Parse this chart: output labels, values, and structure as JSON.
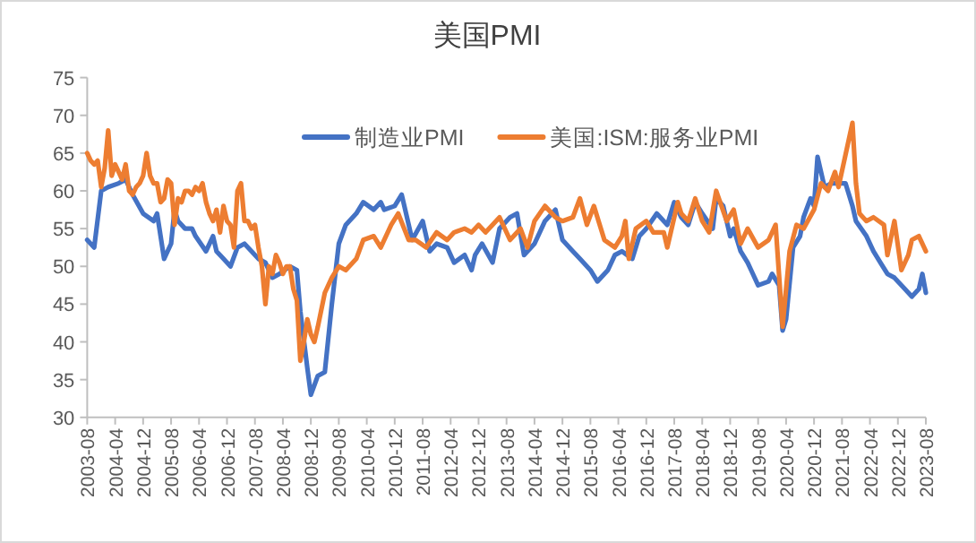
{
  "chart_data": {
    "type": "line",
    "title": "美国PMI",
    "legend": "top",
    "xlim": [
      "2003-08",
      "2023-08"
    ],
    "xticks": [
      "2003-08",
      "2004-04",
      "2004-12",
      "2005-08",
      "2006-04",
      "2006-12",
      "2007-08",
      "2008-04",
      "2008-12",
      "2009-08",
      "2010-04",
      "2010-12",
      "2011-08",
      "2012-04",
      "2012-12",
      "2013-08",
      "2014-04",
      "2014-12",
      "2015-08",
      "2016-04",
      "2016-12",
      "2017-08",
      "2018-04",
      "2018-12",
      "2019-08",
      "2020-04",
      "2020-12",
      "2021-08",
      "2022-04",
      "2022-12",
      "2023-08"
    ],
    "ylim": [
      30,
      75
    ],
    "yticks": [
      30,
      35,
      40,
      45,
      50,
      55,
      60,
      65,
      70,
      75
    ],
    "series": [
      {
        "name": "制造业PMI",
        "color": "#4472c4",
        "x": [
          "2003-08",
          "2003-10",
          "2003-12",
          "2004-02",
          "2004-05",
          "2004-07",
          "2004-09",
          "2004-12",
          "2005-03",
          "2005-04",
          "2005-05",
          "2005-06",
          "2005-08",
          "2005-09",
          "2005-10",
          "2005-12",
          "2006-02",
          "2006-03",
          "2006-06",
          "2006-08",
          "2006-09",
          "2006-11",
          "2007-01",
          "2007-03",
          "2007-05",
          "2007-09",
          "2007-11",
          "2008-01",
          "2008-03",
          "2008-06",
          "2008-08",
          "2008-09",
          "2008-11",
          "2008-12",
          "2009-02",
          "2009-04",
          "2009-06",
          "2009-08",
          "2009-10",
          "2009-11",
          "2010-01",
          "2010-03",
          "2010-06",
          "2010-08",
          "2010-09",
          "2010-12",
          "2011-02",
          "2011-04",
          "2011-05",
          "2011-08",
          "2011-10",
          "2011-12",
          "2012-03",
          "2012-05",
          "2012-08",
          "2012-10",
          "2012-11",
          "2013-01",
          "2013-04",
          "2013-06",
          "2013-09",
          "2013-11",
          "2014-01",
          "2014-04",
          "2014-07",
          "2014-10",
          "2014-12",
          "2015-03",
          "2015-05",
          "2015-08",
          "2015-10",
          "2016-01",
          "2016-03",
          "2016-05",
          "2016-08",
          "2016-10",
          "2016-12",
          "2017-03",
          "2017-06",
          "2017-08",
          "2017-10",
          "2017-12",
          "2018-02",
          "2018-04",
          "2018-07",
          "2018-08",
          "2018-10",
          "2018-12",
          "2019-01",
          "2019-03",
          "2019-05",
          "2019-06",
          "2019-08",
          "2019-11",
          "2019-12",
          "2020-02",
          "2020-03",
          "2020-04",
          "2020-06",
          "2020-08",
          "2020-09",
          "2020-11",
          "2020-12",
          "2021-01",
          "2021-03",
          "2021-05",
          "2021-07",
          "2021-09",
          "2021-11",
          "2021-12",
          "2022-03",
          "2022-05",
          "2022-07",
          "2022-09",
          "2022-11",
          "2023-02",
          "2023-04",
          "2023-06",
          "2023-07",
          "2023-08"
        ],
        "values": [
          53.5,
          52.5,
          60,
          60.5,
          61,
          61.5,
          59.5,
          57,
          56,
          57,
          54,
          51,
          53,
          57.5,
          56,
          55,
          55,
          54,
          52,
          54,
          52,
          51,
          50,
          52.5,
          53,
          51,
          50.5,
          48.5,
          49,
          50,
          49.5,
          44,
          36.5,
          33,
          35.5,
          36,
          45,
          53,
          55.5,
          56,
          57,
          58.5,
          57.5,
          58.5,
          57.5,
          58,
          59.5,
          55.5,
          53.5,
          56,
          52,
          53,
          52.5,
          50.5,
          51.5,
          49.5,
          51.5,
          53,
          50.5,
          55,
          56.5,
          57,
          51.5,
          53,
          56,
          57.5,
          53.5,
          52,
          51,
          49.5,
          48,
          49.5,
          51.5,
          52,
          51,
          54,
          55,
          57,
          55.5,
          58.5,
          56.5,
          55.5,
          58.5,
          57,
          55,
          59,
          58,
          54,
          55,
          52,
          50.5,
          49.5,
          47.5,
          48,
          49,
          47.5,
          41.5,
          43,
          52.5,
          54,
          56.5,
          59,
          58,
          64.5,
          60.5,
          61,
          61,
          61,
          58,
          56,
          54,
          52,
          50.5,
          49,
          48.5,
          47,
          46,
          47,
          49,
          46.5
        ]
      },
      {
        "name": "美国:ISM:服务业PMI",
        "color": "#ed7d31",
        "x": [
          "2003-08",
          "2003-09",
          "2003-10",
          "2003-11",
          "2003-12",
          "2004-01",
          "2004-02",
          "2004-03",
          "2004-04",
          "2004-05",
          "2004-06",
          "2004-07",
          "2004-08",
          "2004-09",
          "2004-10",
          "2004-11",
          "2004-12",
          "2005-01",
          "2005-02",
          "2005-03",
          "2005-04",
          "2005-05",
          "2005-06",
          "2005-07",
          "2005-08",
          "2005-09",
          "2005-10",
          "2005-11",
          "2005-12",
          "2006-01",
          "2006-02",
          "2006-03",
          "2006-04",
          "2006-05",
          "2006-06",
          "2006-07",
          "2006-08",
          "2006-09",
          "2006-10",
          "2006-11",
          "2006-12",
          "2007-01",
          "2007-02",
          "2007-03",
          "2007-04",
          "2007-05",
          "2007-06",
          "2007-07",
          "2007-08",
          "2007-09",
          "2007-10",
          "2007-11",
          "2007-12",
          "2008-01",
          "2008-02",
          "2008-03",
          "2008-04",
          "2008-05",
          "2008-06",
          "2008-07",
          "2008-08",
          "2008-09",
          "2008-10",
          "2008-11",
          "2008-12",
          "2009-01",
          "2009-02",
          "2009-04",
          "2009-06",
          "2009-08",
          "2009-10",
          "2010-01",
          "2010-03",
          "2010-06",
          "2010-08",
          "2010-11",
          "2011-01",
          "2011-04",
          "2011-06",
          "2011-09",
          "2011-12",
          "2012-03",
          "2012-05",
          "2012-08",
          "2012-10",
          "2012-12",
          "2013-02",
          "2013-06",
          "2013-09",
          "2013-12",
          "2014-02",
          "2014-04",
          "2014-07",
          "2014-10",
          "2014-12",
          "2015-03",
          "2015-05",
          "2015-07",
          "2015-09",
          "2015-12",
          "2016-03",
          "2016-05",
          "2016-06",
          "2016-07",
          "2016-09",
          "2016-12",
          "2017-02",
          "2017-05",
          "2017-06",
          "2017-09",
          "2017-10",
          "2017-12",
          "2018-02",
          "2018-04",
          "2018-06",
          "2018-08",
          "2018-11",
          "2019-01",
          "2019-03",
          "2019-05",
          "2019-08",
          "2019-11",
          "2020-01",
          "2020-03",
          "2020-05",
          "2020-07",
          "2020-09",
          "2020-12",
          "2021-02",
          "2021-04",
          "2021-06",
          "2021-07",
          "2021-11",
          "2021-12",
          "2022-01",
          "2022-03",
          "2022-05",
          "2022-08",
          "2022-09",
          "2022-11",
          "2023-01",
          "2023-03",
          "2023-04",
          "2023-06",
          "2023-08"
        ],
        "values": [
          65,
          64,
          63.5,
          64,
          60.5,
          63,
          68,
          62,
          63.5,
          62.5,
          61.5,
          63.5,
          60,
          59.5,
          60.5,
          61,
          62,
          65,
          62,
          61,
          61,
          58.5,
          59,
          61.5,
          61,
          55.5,
          59,
          58.5,
          60,
          60,
          59.5,
          60.5,
          60,
          61,
          58.5,
          57,
          56,
          57.5,
          54.5,
          58,
          56,
          55.5,
          52.5,
          60,
          61,
          56,
          56,
          55,
          55.5,
          52.5,
          50,
          45,
          50,
          49,
          51.5,
          50.5,
          49,
          50,
          50,
          47,
          45.5,
          37.5,
          40,
          43,
          41,
          40,
          42,
          46.5,
          48.5,
          50,
          49.5,
          51,
          53.5,
          54,
          52.5,
          55.5,
          57,
          53.5,
          53.5,
          52.5,
          54.5,
          53.5,
          54.5,
          55,
          54.5,
          55.5,
          54.5,
          56.5,
          53.5,
          55,
          52.5,
          56,
          58,
          56.5,
          56,
          56.5,
          59,
          55.5,
          58,
          53.5,
          52.5,
          54,
          56,
          51,
          55,
          56,
          54.5,
          54.5,
          52.5,
          58.5,
          57,
          56,
          59,
          56,
          54.5,
          60,
          56,
          57.5,
          53,
          55,
          52.5,
          53.5,
          55.5,
          42,
          52,
          55.5,
          55,
          57.5,
          61,
          60,
          62.5,
          60.5,
          69,
          61,
          57,
          56,
          56.5,
          55.5,
          51.5,
          56,
          49.5,
          51.5,
          53.5,
          54,
          52
        ]
      }
    ]
  }
}
